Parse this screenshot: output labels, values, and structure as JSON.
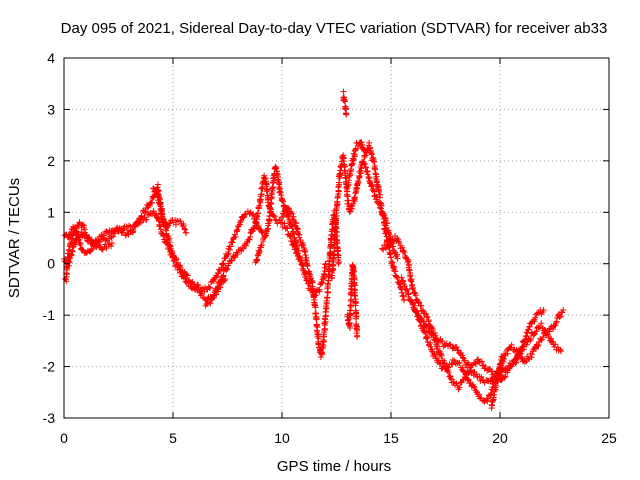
{
  "chart_data": {
    "type": "scatter",
    "title": "Day 095 of 2021, Sidereal Day-to-day VTEC variation (SDTVAR) for receiver ab33",
    "xlabel": "GPS time / hours",
    "ylabel": "SDTVAR / TECUs",
    "xlim": [
      0,
      25
    ],
    "ylim": [
      -3,
      4
    ],
    "xticks": [
      "0",
      "5",
      "10",
      "15",
      "20",
      "25"
    ],
    "yticks": [
      "-3",
      "-2",
      "-1",
      "0",
      "1",
      "2",
      "3",
      "4"
    ],
    "grid": true,
    "marker": "+",
    "series": [
      {
        "name": "SDTVAR",
        "color": "#ff0000",
        "tracks": [
          [
            [
              0.0,
              0.6
            ],
            [
              0.2,
              0.5
            ],
            [
              0.4,
              0.7
            ],
            [
              0.6,
              0.6
            ],
            [
              0.8,
              0.3
            ],
            [
              1.0,
              0.2
            ],
            [
              1.3,
              0.3
            ],
            [
              1.6,
              0.4
            ],
            [
              2.0,
              0.5
            ],
            [
              2.4,
              0.6
            ],
            [
              2.8,
              0.7
            ],
            [
              3.2,
              0.7
            ],
            [
              3.5,
              0.9
            ],
            [
              3.8,
              1.1
            ],
            [
              4.0,
              1.2
            ],
            [
              4.2,
              1.4
            ],
            [
              4.3,
              1.5
            ],
            [
              4.4,
              1.2
            ],
            [
              4.5,
              0.9
            ],
            [
              4.7,
              0.7
            ],
            [
              4.9,
              0.8
            ],
            [
              5.2,
              0.8
            ],
            [
              5.4,
              0.8
            ],
            [
              5.6,
              0.6
            ]
          ],
          [
            [
              0.0,
              0.1
            ],
            [
              0.2,
              0.0
            ],
            [
              0.4,
              0.3
            ],
            [
              0.6,
              0.5
            ],
            [
              0.8,
              0.6
            ],
            [
              1.0,
              0.5
            ],
            [
              1.3,
              0.4
            ],
            [
              1.6,
              0.5
            ],
            [
              2.0,
              0.6
            ],
            [
              2.4,
              0.7
            ],
            [
              2.8,
              0.6
            ],
            [
              3.1,
              0.6
            ],
            [
              3.4,
              0.8
            ],
            [
              3.8,
              0.9
            ],
            [
              4.1,
              1.0
            ],
            [
              4.3,
              0.9
            ],
            [
              4.5,
              0.6
            ],
            [
              4.8,
              0.3
            ],
            [
              5.1,
              0.0
            ],
            [
              5.4,
              -0.2
            ],
            [
              5.7,
              -0.4
            ],
            [
              6.0,
              -0.5
            ],
            [
              6.3,
              -0.6
            ],
            [
              6.6,
              -0.7
            ],
            [
              6.9,
              -0.6
            ],
            [
              7.2,
              -0.4
            ],
            [
              7.4,
              -0.3
            ]
          ],
          [
            [
              0.0,
              -0.3
            ],
            [
              0.1,
              -0.3
            ],
            [
              0.15,
              0.0
            ],
            [
              0.2,
              0.2
            ],
            [
              0.3,
              0.4
            ],
            [
              0.5,
              0.6
            ],
            [
              0.7,
              0.8
            ],
            [
              0.9,
              0.7
            ],
            [
              1.1,
              0.5
            ],
            [
              1.4,
              0.4
            ],
            [
              1.8,
              0.3
            ],
            [
              2.2,
              0.4
            ]
          ],
          [
            [
              4.1,
              1.5
            ],
            [
              4.3,
              1.3
            ],
            [
              4.5,
              1.0
            ],
            [
              4.7,
              0.6
            ],
            [
              4.9,
              0.3
            ],
            [
              5.1,
              0.1
            ],
            [
              5.4,
              -0.1
            ],
            [
              5.7,
              -0.3
            ],
            [
              6.0,
              -0.4
            ],
            [
              6.3,
              -0.5
            ],
            [
              6.6,
              -0.5
            ],
            [
              6.9,
              -0.3
            ],
            [
              7.2,
              -0.1
            ],
            [
              7.5,
              0.2
            ],
            [
              7.7,
              0.4
            ],
            [
              7.9,
              0.6
            ],
            [
              8.1,
              0.8
            ],
            [
              8.3,
              1.0
            ],
            [
              8.5,
              1.0
            ],
            [
              8.7,
              0.9
            ],
            [
              8.9,
              0.7
            ],
            [
              9.1,
              0.6
            ]
          ],
          [
            [
              6.5,
              -0.8
            ],
            [
              6.8,
              -0.7
            ],
            [
              7.0,
              -0.5
            ],
            [
              7.3,
              -0.2
            ],
            [
              7.6,
              0.0
            ],
            [
              7.9,
              0.2
            ],
            [
              8.2,
              0.3
            ],
            [
              8.5,
              0.5
            ],
            [
              8.8,
              0.8
            ],
            [
              9.0,
              1.2
            ],
            [
              9.1,
              1.5
            ],
            [
              9.2,
              1.7
            ],
            [
              9.3,
              1.5
            ],
            [
              9.4,
              1.1
            ],
            [
              9.6,
              0.9
            ],
            [
              9.9,
              0.8
            ],
            [
              10.2,
              0.7
            ],
            [
              10.4,
              0.5
            ],
            [
              10.6,
              0.3
            ],
            [
              10.8,
              0.1
            ]
          ],
          [
            [
              8.8,
              0.0
            ],
            [
              9.0,
              0.3
            ],
            [
              9.2,
              0.5
            ],
            [
              9.4,
              0.8
            ],
            [
              9.5,
              1.2
            ],
            [
              9.6,
              1.6
            ],
            [
              9.7,
              1.9
            ],
            [
              9.8,
              1.7
            ],
            [
              9.9,
              1.4
            ],
            [
              10.1,
              1.1
            ],
            [
              10.3,
              0.9
            ],
            [
              10.5,
              0.6
            ],
            [
              10.7,
              0.3
            ],
            [
              10.9,
              0.0
            ],
            [
              11.1,
              -0.3
            ],
            [
              11.3,
              -0.5
            ],
            [
              11.5,
              -0.6
            ],
            [
              11.7,
              -0.5
            ],
            [
              11.9,
              -0.3
            ],
            [
              12.0,
              0.0
            ]
          ],
          [
            [
              10.0,
              0.9
            ],
            [
              10.2,
              1.1
            ],
            [
              10.4,
              1.0
            ],
            [
              10.6,
              0.8
            ],
            [
              10.8,
              0.5
            ],
            [
              11.0,
              0.3
            ],
            [
              11.2,
              -0.1
            ],
            [
              11.4,
              -0.4
            ],
            [
              11.5,
              -0.8
            ],
            [
              11.6,
              -1.2
            ],
            [
              11.7,
              -1.6
            ],
            [
              11.8,
              -1.8
            ],
            [
              11.9,
              -1.5
            ],
            [
              12.0,
              -1.0
            ],
            [
              12.1,
              -0.5
            ],
            [
              12.2,
              0.2
            ],
            [
              12.3,
              0.7
            ],
            [
              12.4,
              1.0
            ],
            [
              12.5,
              0.6
            ],
            [
              12.6,
              0.0
            ]
          ],
          [
            [
              12.3,
              -0.3
            ],
            [
              12.4,
              0.4
            ],
            [
              12.5,
              1.0
            ],
            [
              12.6,
              1.5
            ],
            [
              12.7,
              1.9
            ],
            [
              12.8,
              2.1
            ],
            [
              12.9,
              1.8
            ],
            [
              13.0,
              1.3
            ],
            [
              13.1,
              1.0
            ],
            [
              13.3,
              1.2
            ],
            [
              13.5,
              1.6
            ],
            [
              13.7,
              2.0
            ],
            [
              13.9,
              1.8
            ],
            [
              14.1,
              1.5
            ],
            [
              14.3,
              1.3
            ],
            [
              14.5,
              1.1
            ],
            [
              14.7,
              0.9
            ],
            [
              14.9,
              0.6
            ],
            [
              15.1,
              0.3
            ],
            [
              15.3,
              0.1
            ]
          ],
          [
            [
              12.8,
              3.3
            ],
            [
              12.85,
              3.2
            ],
            [
              12.9,
              3.1
            ],
            [
              12.95,
              2.9
            ]
          ],
          [
            [
              13.0,
              1.5
            ],
            [
              13.2,
              1.9
            ],
            [
              13.4,
              2.3
            ],
            [
              13.6,
              2.4
            ],
            [
              13.8,
              2.1
            ],
            [
              14.0,
              2.3
            ],
            [
              14.2,
              2.0
            ],
            [
              14.4,
              1.5
            ],
            [
              14.6,
              1.0
            ],
            [
              14.8,
              0.5
            ],
            [
              15.0,
              0.1
            ],
            [
              15.2,
              -0.2
            ],
            [
              15.4,
              -0.4
            ],
            [
              15.6,
              -0.7
            ]
          ],
          [
            [
              13.0,
              -1.0
            ],
            [
              13.1,
              -1.2
            ],
            [
              13.15,
              -0.8
            ],
            [
              13.2,
              -0.3
            ],
            [
              13.25,
              0.0
            ],
            [
              13.3,
              -0.2
            ],
            [
              13.35,
              -0.6
            ],
            [
              13.4,
              -1.0
            ],
            [
              13.45,
              -1.4
            ]
          ],
          [
            [
              14.6,
              0.3
            ],
            [
              14.9,
              0.4
            ],
            [
              15.2,
              0.5
            ],
            [
              15.5,
              0.3
            ],
            [
              15.8,
              0.0
            ],
            [
              16.0,
              -0.5
            ],
            [
              16.3,
              -0.8
            ],
            [
              16.6,
              -1.0
            ],
            [
              16.9,
              -1.3
            ],
            [
              17.2,
              -1.5
            ],
            [
              17.5,
              -1.6
            ],
            [
              17.8,
              -1.6
            ],
            [
              18.1,
              -1.7
            ],
            [
              18.4,
              -1.9
            ],
            [
              18.7,
              -2.1
            ],
            [
              19.0,
              -2.2
            ],
            [
              19.3,
              -2.3
            ],
            [
              19.6,
              -2.3
            ],
            [
              19.9,
              -2.1
            ],
            [
              20.2,
              -1.8
            ],
            [
              20.5,
              -1.6
            ],
            [
              20.8,
              -1.7
            ],
            [
              21.1,
              -1.9
            ],
            [
              21.4,
              -1.8
            ],
            [
              21.7,
              -1.6
            ],
            [
              22.0,
              -1.4
            ],
            [
              22.3,
              -1.3
            ],
            [
              22.6,
              -1.1
            ],
            [
              22.9,
              -0.9
            ]
          ],
          [
            [
              15.5,
              -0.3
            ],
            [
              15.8,
              -0.6
            ],
            [
              16.1,
              -0.9
            ],
            [
              16.4,
              -1.2
            ],
            [
              16.7,
              -1.5
            ],
            [
              17.0,
              -1.8
            ],
            [
              17.3,
              -2.0
            ],
            [
              17.6,
              -2.0
            ],
            [
              17.9,
              -1.9
            ],
            [
              18.2,
              -2.0
            ],
            [
              18.5,
              -2.2
            ],
            [
              18.8,
              -2.4
            ],
            [
              19.1,
              -2.6
            ],
            [
              19.4,
              -2.7
            ],
            [
              19.6,
              -2.5
            ],
            [
              19.8,
              -2.3
            ],
            [
              20.1,
              -2.1
            ],
            [
              20.4,
              -2.0
            ],
            [
              20.7,
              -1.9
            ],
            [
              21.0,
              -1.7
            ],
            [
              21.3,
              -1.5
            ],
            [
              21.6,
              -1.3
            ],
            [
              21.9,
              -1.2
            ],
            [
              22.2,
              -1.4
            ],
            [
              22.5,
              -1.6
            ],
            [
              22.8,
              -1.7
            ]
          ],
          [
            [
              16.0,
              -0.8
            ],
            [
              16.3,
              -1.0
            ],
            [
              16.6,
              -1.2
            ],
            [
              16.9,
              -1.4
            ],
            [
              17.2,
              -1.7
            ],
            [
              17.5,
              -2.0
            ],
            [
              17.8,
              -2.3
            ],
            [
              18.1,
              -2.4
            ],
            [
              18.4,
              -2.2
            ],
            [
              18.7,
              -2.0
            ],
            [
              19.0,
              -1.9
            ],
            [
              19.3,
              -2.0
            ],
            [
              19.6,
              -2.1
            ],
            [
              19.9,
              -2.3
            ],
            [
              20.2,
              -2.2
            ],
            [
              20.5,
              -2.0
            ],
            [
              20.8,
              -1.8
            ],
            [
              21.1,
              -1.5
            ],
            [
              21.4,
              -1.2
            ],
            [
              21.7,
              -1.0
            ],
            [
              22.0,
              -0.9
            ]
          ],
          [
            [
              19.6,
              -2.8
            ],
            [
              19.7,
              -2.6
            ],
            [
              19.8,
              -2.4
            ],
            [
              19.9,
              -2.2
            ],
            [
              20.0,
              -2.0
            ],
            [
              20.1,
              -1.8
            ]
          ]
        ]
      }
    ]
  }
}
